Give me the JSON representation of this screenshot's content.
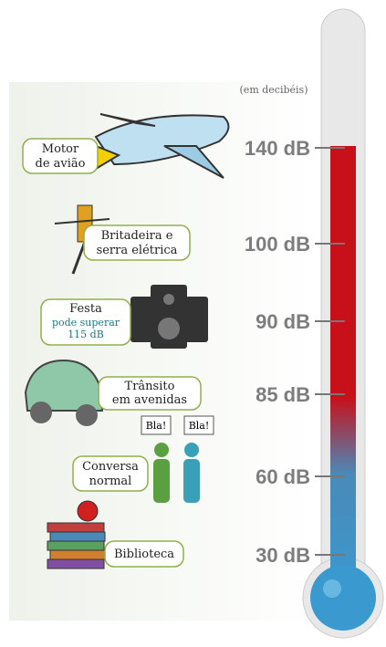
{
  "unit_note": "(em decibéis)",
  "levels": [
    {
      "label_lines": [
        "Motor",
        "de avião"
      ],
      "db": "140 dB"
    },
    {
      "label_lines": [
        "Britadeira e",
        "serra elétrica"
      ],
      "db": "100 dB"
    },
    {
      "label_lines": [
        "Festa"
      ],
      "note_lines": [
        "pode superar",
        "115 dB"
      ],
      "db": "90 dB"
    },
    {
      "label_lines": [
        "Trânsito",
        "em avenidas"
      ],
      "db": "85 dB"
    },
    {
      "label_lines": [
        "Conversa",
        "normal"
      ],
      "speech": [
        "Bla!",
        "Bla!"
      ],
      "db": "60 dB"
    },
    {
      "label_lines": [
        "Biblioteca"
      ],
      "db": "30 dB"
    }
  ]
}
